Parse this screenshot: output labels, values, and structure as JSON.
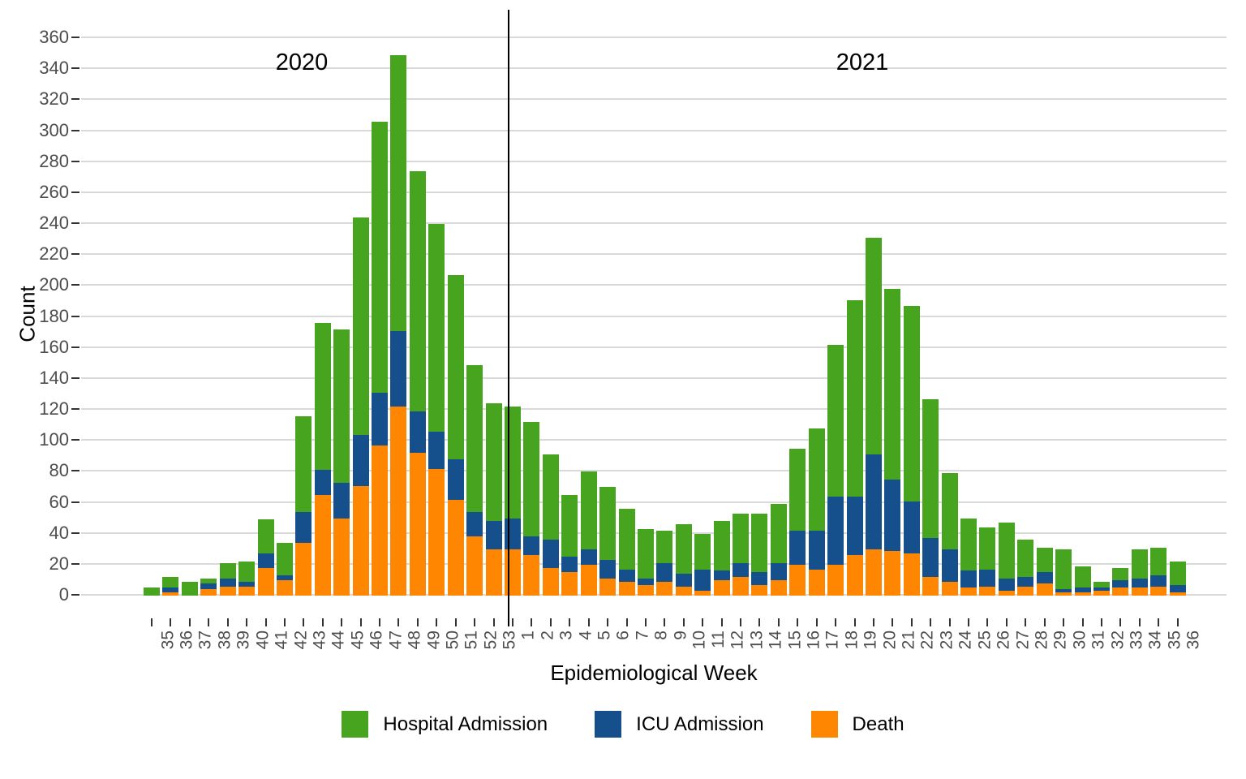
{
  "chart_data": {
    "type": "bar",
    "stacked": true,
    "title": "",
    "xlabel": "Epidemiological Week",
    "ylabel": "Count",
    "ylim": [
      0,
      370
    ],
    "yticks": [
      0,
      20,
      40,
      60,
      80,
      100,
      120,
      140,
      160,
      180,
      200,
      220,
      240,
      260,
      280,
      300,
      320,
      340,
      360
    ],
    "grid": "horizontal-only",
    "legend_position": "bottom",
    "categories": [
      "35",
      "36",
      "37",
      "38",
      "39",
      "40",
      "41",
      "42",
      "43",
      "44",
      "45",
      "46",
      "47",
      "48",
      "49",
      "50",
      "51",
      "52",
      "53",
      "1",
      "2",
      "3",
      "4",
      "5",
      "6",
      "7",
      "8",
      "9",
      "10",
      "11",
      "12",
      "13",
      "14",
      "15",
      "16",
      "17",
      "18",
      "19",
      "20",
      "21",
      "22",
      "23",
      "24",
      "25",
      "26",
      "27",
      "28",
      "29",
      "30",
      "31",
      "32",
      "33",
      "34",
      "35",
      "36"
    ],
    "divider_between": [
      "53",
      "1"
    ],
    "annotations": [
      {
        "text": "2020"
      },
      {
        "text": "2021"
      }
    ],
    "stack_order_bottom_to_top": [
      "Death",
      "ICU Admission",
      "Hospital Admission"
    ],
    "series": [
      {
        "name": "Hospital Admission",
        "color": "#46A41E",
        "values": [
          5,
          7,
          9,
          3,
          10,
          13,
          22,
          21,
          62,
          95,
          99,
          140,
          175,
          178,
          155,
          134,
          119,
          95,
          76,
          72,
          74,
          55,
          40,
          50,
          47,
          39,
          32,
          21,
          32,
          23,
          32,
          32,
          38,
          38,
          53,
          66,
          98,
          127,
          140,
          123,
          126,
          90,
          49,
          34,
          27,
          36,
          24,
          16,
          26,
          14,
          4,
          8,
          19,
          18,
          15
        ]
      },
      {
        "name": "ICU Admission",
        "color": "#16508C",
        "values": [
          0,
          3,
          0,
          4,
          5,
          3,
          9,
          3,
          20,
          16,
          23,
          33,
          34,
          49,
          27,
          24,
          26,
          16,
          18,
          20,
          12,
          18,
          10,
          10,
          12,
          8,
          4,
          12,
          8,
          14,
          6,
          9,
          8,
          11,
          22,
          25,
          44,
          38,
          61,
          46,
          34,
          25,
          21,
          11,
          11,
          8,
          6,
          7,
          2,
          3,
          2,
          5,
          6,
          7,
          5
        ]
      },
      {
        "name": "Death",
        "color": "#FF8600",
        "values": [
          0,
          2,
          0,
          4,
          6,
          6,
          18,
          10,
          34,
          65,
          50,
          71,
          97,
          122,
          92,
          82,
          62,
          38,
          30,
          30,
          26,
          18,
          15,
          20,
          11,
          9,
          7,
          9,
          6,
          3,
          10,
          12,
          7,
          10,
          20,
          17,
          20,
          26,
          30,
          29,
          27,
          12,
          9,
          5,
          6,
          3,
          6,
          8,
          2,
          2,
          3,
          5,
          5,
          6,
          2
        ]
      }
    ],
    "legend": [
      {
        "label": "Hospital Admission",
        "color": "#46A41E"
      },
      {
        "label": "ICU Admission",
        "color": "#16508C"
      },
      {
        "label": "Death",
        "color": "#FF8600"
      }
    ]
  }
}
